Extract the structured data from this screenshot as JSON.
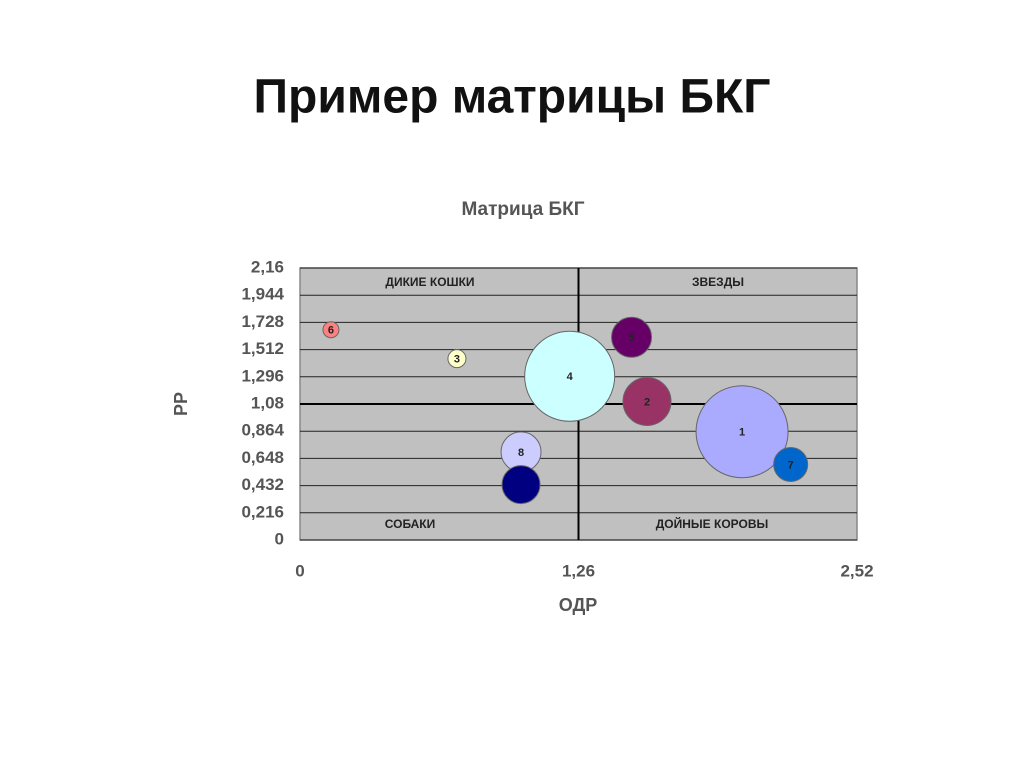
{
  "heading": "Пример матрицы БКГ",
  "chart_data": {
    "type": "bubble",
    "title": "Матрица БКГ",
    "x_label": "ОДР",
    "y_label": "РР",
    "xlim": [
      0,
      2.52
    ],
    "xticks": [
      0,
      {
        "value": 1.26,
        "label": "1,26"
      },
      {
        "value": 2.52,
        "label": "2,52"
      }
    ],
    "ylim": [
      0,
      2.16
    ],
    "yticks": [
      0,
      {
        "value": 0.216,
        "label": "0,216"
      },
      {
        "value": 0.432,
        "label": "0,432"
      },
      {
        "value": 0.648,
        "label": "0,648"
      },
      {
        "value": 0.864,
        "label": "0,864"
      },
      {
        "value": 1.08,
        "label": "1,08"
      },
      {
        "value": 1.296,
        "label": "1,296"
      },
      {
        "value": 1.512,
        "label": "1,512"
      },
      {
        "value": 1.728,
        "label": "1,728"
      },
      {
        "value": 1.944,
        "label": "1,944"
      },
      {
        "value": 2.16,
        "label": "2,16"
      }
    ],
    "grid": true,
    "divider_x": 1.26,
    "divider_y": 1.08,
    "quadrants": {
      "top_left": "ДИКИЕ КОШКИ",
      "top_right": "ЗВЕЗДЫ",
      "bottom_left": "СОБАКИ",
      "bottom_right": "ДОЙНЫЕ КОРОВЫ"
    },
    "points": [
      {
        "label": "1",
        "x": 2.0,
        "y": 0.86,
        "size": 46,
        "color": "#aaaaff"
      },
      {
        "label": "2",
        "x": 1.57,
        "y": 1.1,
        "size": 24,
        "color": "#993366"
      },
      {
        "label": "3",
        "x": 0.71,
        "y": 1.44,
        "size": 9,
        "color": "#ffffcc"
      },
      {
        "label": "4",
        "x": 1.22,
        "y": 1.3,
        "size": 45,
        "color": "#ccffff"
      },
      {
        "label": "5",
        "x": 1.5,
        "y": 1.61,
        "size": 20,
        "color": "#660066"
      },
      {
        "label": "6",
        "x": 0.14,
        "y": 1.67,
        "size": 8,
        "color": "#ff8080"
      },
      {
        "label": "7",
        "x": 2.22,
        "y": 0.6,
        "size": 17,
        "color": "#0066cc"
      },
      {
        "label": "8",
        "x": 1.0,
        "y": 0.7,
        "size": 20,
        "color": "#ccccff"
      },
      {
        "label": null,
        "x": 1.0,
        "y": 0.44,
        "size": 19,
        "color": "#000080"
      }
    ]
  }
}
